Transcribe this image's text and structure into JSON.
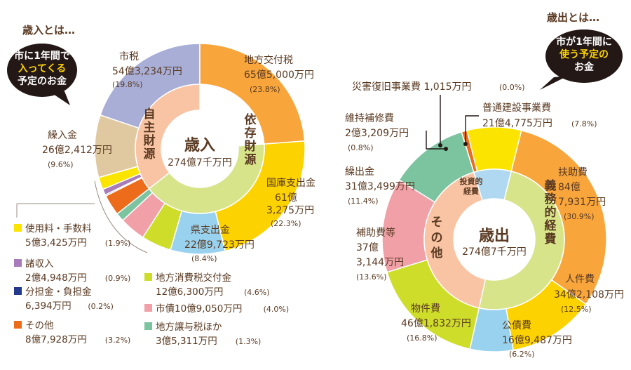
{
  "chart_data": [
    {
      "type": "pie",
      "title": "歳入",
      "total": "274億7千万円",
      "intro": {
        "heading": "歳入とは…",
        "bubble": [
          "市に1年間で",
          "入ってくる",
          "予定のお金"
        ]
      },
      "groups": [
        {
          "label": "自主財源",
          "color": "#f9c4a4",
          "start_item": 0,
          "end_item": 6
        },
        {
          "label": "依存財源",
          "color": "#d7e48a",
          "start_item": 6,
          "end_item": 11
        }
      ],
      "series": [
        {
          "name": "市税",
          "amount": "54億3,234万円",
          "percent": 19.8,
          "pct_label": "(19.8%)",
          "color": "#a8aed6"
        },
        {
          "name": "繰入金",
          "amount": "26億2,412万円",
          "percent": 9.6,
          "pct_label": "(9.6%)",
          "color": "#e0c9a0"
        },
        {
          "name": "使用料・手数料",
          "amount": "5億3,425万円",
          "percent": 1.9,
          "pct_label": "(1.9%)",
          "color": "#fbe400"
        },
        {
          "name": "諸収入",
          "amount": "2億4,948万円",
          "percent": 0.9,
          "pct_label": "(0.9%)",
          "color": "#a77cb8"
        },
        {
          "name": "分担金・負担金",
          "amount": "6,394万円",
          "percent": 0.2,
          "pct_label": "(0.2%)",
          "color": "#233a8c"
        },
        {
          "name": "その他",
          "amount": "8億7,928万円",
          "percent": 3.2,
          "pct_label": "(3.2%)",
          "color": "#ec6c1c"
        },
        {
          "name": "地方譲与税ほか",
          "amount": "3億5,311万円",
          "percent": 1.3,
          "pct_label": "(1.3%)",
          "color": "#7cc4a0"
        },
        {
          "name": "市債",
          "amount": "10億9,050万円",
          "percent": 4.0,
          "pct_label": "(4.0%)",
          "color": "#f1a0a8"
        },
        {
          "name": "地方消費税交付金",
          "amount": "12億6,300万円",
          "percent": 4.6,
          "pct_label": "(4.6%)",
          "color": "#cedd2a"
        },
        {
          "name": "県支出金",
          "amount": "22億9,723万円",
          "percent": 8.4,
          "pct_label": "(8.4%)",
          "color": "#99d2ef"
        },
        {
          "name": "国庫支出金",
          "amount": "61億3,275万円",
          "amount_lines": [
            "61億",
            "3,275万円"
          ],
          "percent": 22.3,
          "pct_label": "(22.3%)",
          "color": "#fcd200"
        },
        {
          "name": "地方交付税",
          "amount": "65億5,000万円",
          "percent": 23.8,
          "pct_label": "(23.8%)",
          "color": "#f8a53c"
        }
      ]
    },
    {
      "type": "pie",
      "title": "歳出",
      "total": "274億7千万円",
      "intro": {
        "heading": "歳出とは…",
        "bubble": [
          "市が1年間に",
          "使う予定の",
          "お金"
        ]
      },
      "groups": [
        {
          "label": "義務的経費",
          "color": "#d7e48a",
          "start_item": 0,
          "end_item": 3
        },
        {
          "label": "その他",
          "color": "#f9c4a4",
          "start_item": 3,
          "end_item": 6
        },
        {
          "label": "投資的経費",
          "color": "#b0d8f0",
          "start_item": 6,
          "end_item": 9
        }
      ],
      "series": [
        {
          "name": "扶助費",
          "amount": "84億7,931万円",
          "amount_lines": [
            "84億",
            "7,931万円"
          ],
          "percent": 30.9,
          "pct_label": "(30.9%)",
          "color": "#f8a53c"
        },
        {
          "name": "人件費",
          "amount": "34億2,108万円",
          "percent": 12.5,
          "pct_label": "(12.5%)",
          "color": "#fcd200"
        },
        {
          "name": "公債費",
          "amount": "16億9,487万円",
          "percent": 6.2,
          "pct_label": "(6.2%)",
          "color": "#99d2ef"
        },
        {
          "name": "物件費",
          "amount": "46億1,832万円",
          "percent": 16.8,
          "pct_label": "(16.8%)",
          "color": "#cedd2a"
        },
        {
          "name": "補助費等",
          "amount": "37億3,144万円",
          "amount_lines": [
            "37億",
            "3,144万円"
          ],
          "percent": 13.6,
          "pct_label": "(13.6%)",
          "color": "#f1a0a8"
        },
        {
          "name": "繰出金",
          "amount": "31億3,499万円",
          "percent": 11.4,
          "pct_label": "(11.4%)",
          "color": "#7cc4a0"
        },
        {
          "name": "維持補修費",
          "amount": "2億3,209万円",
          "percent": 0.8,
          "pct_label": "(0.8%)",
          "color": "#ec6c1c"
        },
        {
          "name": "災害復旧事業費",
          "amount": "1,015万円",
          "percent": 0.0,
          "pct_label": "(0.0%)",
          "color": "#233a8c"
        },
        {
          "name": "普通建設事業費",
          "amount": "21億4,775万円",
          "percent": 7.8,
          "pct_label": "(7.8%)",
          "color": "#fbe400"
        }
      ]
    }
  ]
}
